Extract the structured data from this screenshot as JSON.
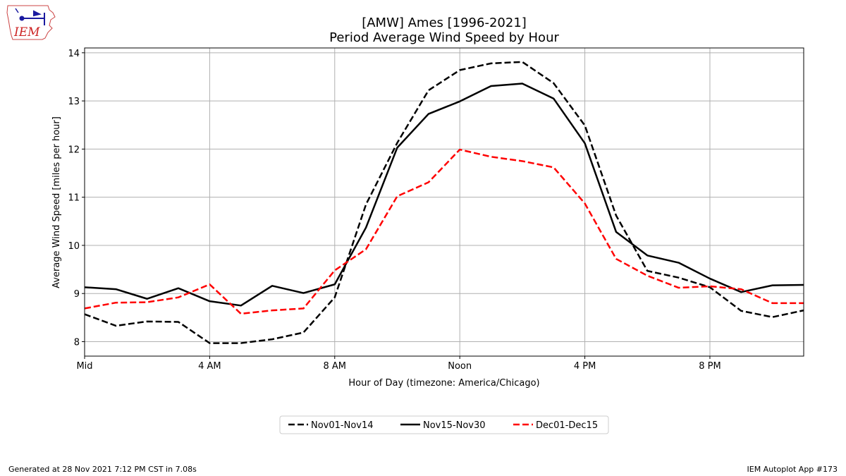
{
  "chart_data": {
    "type": "line",
    "title": "[AMW] Ames [1996-2021]",
    "subtitle": "Period Average Wind Speed by Hour",
    "xlabel": "Hour of Day (timezone: America/Chicago)",
    "ylabel": "Average Wind Speed [miles per hour]",
    "x": [
      0,
      1,
      2,
      3,
      4,
      5,
      6,
      7,
      8,
      9,
      10,
      11,
      12,
      13,
      14,
      15,
      16,
      17,
      18,
      19,
      20,
      21,
      22,
      23
    ],
    "xlim": [
      0,
      23
    ],
    "ylim": [
      7.7,
      14.1
    ],
    "xticks": [
      {
        "value": 0,
        "label": "Mid"
      },
      {
        "value": 4,
        "label": "4 AM"
      },
      {
        "value": 8,
        "label": "8 AM"
      },
      {
        "value": 12,
        "label": "Noon"
      },
      {
        "value": 16,
        "label": "4 PM"
      },
      {
        "value": 20,
        "label": "8 PM"
      }
    ],
    "yticks": [
      8,
      9,
      10,
      11,
      12,
      13,
      14
    ],
    "grid": true,
    "legend_position": "bottom-center",
    "series": [
      {
        "name": "Nov01-Nov14",
        "color": "#000000",
        "style": "dashed",
        "values": [
          8.57,
          8.33,
          8.42,
          8.41,
          7.97,
          7.97,
          8.05,
          8.19,
          8.92,
          10.85,
          12.13,
          13.22,
          13.64,
          13.78,
          13.81,
          13.37,
          12.49,
          10.62,
          9.47,
          9.33,
          9.13,
          8.64,
          8.51,
          8.65
        ]
      },
      {
        "name": "Nov15-Nov30",
        "color": "#000000",
        "style": "solid",
        "values": [
          9.13,
          9.09,
          8.89,
          9.11,
          8.84,
          8.75,
          9.16,
          9.01,
          9.19,
          10.37,
          12.03,
          12.73,
          12.99,
          13.31,
          13.36,
          13.05,
          12.12,
          10.28,
          9.79,
          9.64,
          9.31,
          9.03,
          9.17,
          9.18
        ]
      },
      {
        "name": "Dec01-Dec15",
        "color": "#ff0000",
        "style": "dashed",
        "values": [
          8.69,
          8.81,
          8.82,
          8.92,
          9.19,
          8.58,
          8.65,
          8.69,
          9.48,
          9.92,
          11.02,
          11.31,
          11.99,
          11.84,
          11.75,
          11.62,
          10.87,
          9.72,
          9.37,
          9.12,
          9.15,
          9.09,
          8.8,
          8.8
        ]
      }
    ]
  },
  "footer": {
    "left": "Generated at 28 Nov 2021 7:12 PM CST in 7.08s",
    "right": "IEM Autoplot App #173"
  },
  "logo": {
    "text": "IEM",
    "color": "#cc2222",
    "icon": "iowa-weather-station-logo"
  }
}
